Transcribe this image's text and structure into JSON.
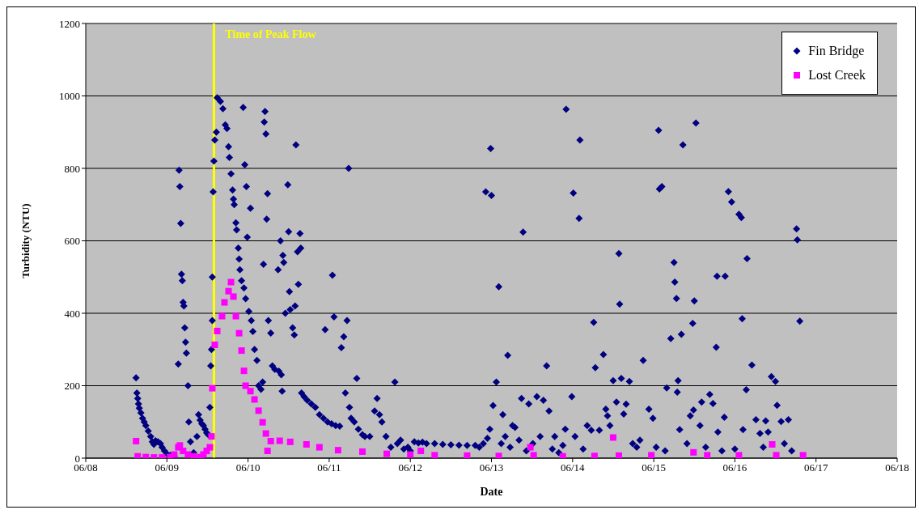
{
  "chart_data": {
    "type": "scatter",
    "xlabel": "Date",
    "ylabel": "Turbidity (NTU)",
    "xlim": [
      "--06-08",
      "--06-18"
    ],
    "xticks": [
      {
        "value": "--06-08",
        "label": "06/08"
      },
      {
        "value": "--06-09",
        "label": "06/09"
      },
      {
        "value": "--06-10",
        "label": "06/10"
      },
      {
        "value": "--06-11",
        "label": "06/11"
      },
      {
        "value": "--06-12",
        "label": "06/12"
      },
      {
        "value": "--06-13",
        "label": "06/13"
      },
      {
        "value": "--06-14",
        "label": "06/14"
      },
      {
        "value": "--06-15",
        "label": "06/15"
      },
      {
        "value": "--06-16",
        "label": "06/16"
      },
      {
        "value": "--06-17",
        "label": "06/17"
      },
      {
        "value": "--06-18",
        "label": "06/18"
      }
    ],
    "ylim": [
      0,
      1200
    ],
    "yticks": [
      0,
      200,
      400,
      600,
      800,
      1000,
      1200
    ],
    "grid": "y",
    "legend": "top right",
    "ref_lines": [
      {
        "axis": "x",
        "value": "--06-09T13:55",
        "label": "Time of Peak Flow",
        "color": "#ffff00"
      }
    ],
    "series": [
      {
        "name": "Fin Bridge",
        "color": "#000080",
        "marker": "diamond",
        "x": [
          "--06-08T14:53",
          "--06-08T15:07",
          "--06-08T15:22",
          "--06-08T15:36",
          "--06-08T15:50",
          "--06-08T16:19",
          "--06-08T16:48",
          "--06-08T17:17",
          "--06-08T17:46",
          "--06-08T18:29",
          "--06-08T19:12",
          "--06-08T19:41",
          "--06-08T20:10",
          "--06-08T20:38",
          "--06-08T21:22",
          "--06-08T22:05",
          "--06-08T22:34",
          "--06-08T23:17",
          "--06-09T00:00",
          "--06-09T00:58",
          "--06-09T02:10",
          "--06-09T03:22",
          "--06-09T03:36",
          "--06-09T03:50",
          "--06-09T04:05",
          "--06-09T04:19",
          "--06-09T04:34",
          "--06-09T04:48",
          "--06-09T05:02",
          "--06-09T05:17",
          "--06-09T05:31",
          "--06-09T05:46",
          "--06-09T06:14",
          "--06-09T06:29",
          "--06-09T06:58",
          "--06-09T07:55",
          "--06-09T08:53",
          "--06-09T09:22",
          "--06-09T09:50",
          "--06-09T10:19",
          "--06-09T10:48",
          "--06-09T11:17",
          "--06-09T11:46",
          "--06-09T12:14",
          "--06-09T12:43",
          "--06-09T12:58",
          "--06-09T13:12",
          "--06-09T13:26",
          "--06-09T13:26",
          "--06-09T13:41",
          "--06-09T13:55",
          "--06-09T14:10",
          "--06-09T14:38",
          "--06-09T14:53",
          "--06-09T15:50",
          "--06-09T16:34",
          "--06-09T17:17",
          "--06-09T17:46",
          "--06-09T18:14",
          "--06-09T18:29",
          "--06-09T18:58",
          "--06-09T19:26",
          "--06-09T19:41",
          "--06-09T19:55",
          "--06-09T20:24",
          "--06-09T20:38",
          "--06-09T21:07",
          "--06-09T21:22",
          "--06-09T21:36",
          "--06-09T22:05",
          "--06-09T22:34",
          "--06-09T22:48",
          "--06-09T23:02",
          "--06-09T23:17",
          "--06-09T23:31",
          "--06-09T23:46",
          "--06-10T00:14",
          "--06-10T00:43",
          "--06-10T00:58",
          "--06-10T01:26",
          "--06-10T01:55",
          "--06-10T02:38",
          "--06-10T03:07",
          "--06-10T03:50",
          "--06-10T04:19",
          "--06-10T04:34",
          "--06-10T04:48",
          "--06-10T05:02",
          "--06-10T05:17",
          "--06-10T05:31",
          "--06-10T05:46",
          "--06-10T06:00",
          "--06-10T06:43",
          "--06-10T07:12",
          "--06-10T07:55",
          "--06-10T08:53",
          "--06-10T09:07",
          "--06-10T09:36",
          "--06-10T09:50",
          "--06-10T10:05",
          "--06-10T10:19",
          "--06-10T10:34",
          "--06-10T11:02",
          "--06-10T11:46",
          "--06-10T12:00",
          "--06-10T12:14",
          "--06-10T12:29",
          "--06-10T13:12",
          "--06-10T13:41",
          "--06-10T13:55",
          "--06-10T14:10",
          "--06-10T14:38",
          "--06-10T14:53",
          "--06-10T15:22",
          "--06-10T15:36",
          "--06-10T15:50",
          "--06-10T16:34",
          "--06-10T17:31",
          "--06-10T18:43",
          "--06-10T19:55",
          "--06-10T21:07",
          "--06-10T22:19",
          "--06-10T22:48",
          "--06-10T23:31",
          "--06-11T00:43",
          "--06-11T00:58",
          "--06-11T01:26",
          "--06-11T01:55",
          "--06-11T03:07",
          "--06-11T03:36",
          "--06-11T04:19",
          "--06-11T04:48",
          "--06-11T05:17",
          "--06-11T05:46",
          "--06-11T06:00",
          "--06-11T06:29",
          "--06-11T07:26",
          "--06-11T08:10",
          "--06-11T08:38",
          "--06-11T09:50",
          "--06-11T10:34",
          "--06-11T12:00",
          "--06-11T13:26",
          "--06-11T14:10",
          "--06-11T14:53",
          "--06-11T15:36",
          "--06-11T16:48",
          "--06-11T18:14",
          "--06-11T19:26",
          "--06-11T20:10",
          "--06-11T21:07",
          "--06-11T22:05",
          "--06-11T23:17",
          "--06-12T00:00",
          "--06-12T01:12",
          "--06-12T02:24",
          "--06-12T03:36",
          "--06-12T04:48",
          "--06-12T07:12",
          "--06-12T09:36",
          "--06-12T12:00",
          "--06-12T14:24",
          "--06-12T16:48",
          "--06-12T19:12",
          "--06-12T20:24",
          "--06-12T21:36",
          "--06-12T22:48",
          "--06-12T23:31",
          "--06-12T22:19",
          "--06-12T23:46",
          "--06-13T00:00",
          "--06-13T00:29",
          "--06-13T01:26",
          "--06-13T02:10",
          "--06-13T02:53",
          "--06-13T03:22",
          "--06-13T04:05",
          "--06-13T04:48",
          "--06-13T05:31",
          "--06-13T06:14",
          "--06-13T06:58",
          "--06-13T08:10",
          "--06-13T08:53",
          "--06-13T09:22",
          "--06-13T10:19",
          "--06-13T11:02",
          "--06-13T12:14",
          "--06-13T13:26",
          "--06-13T14:24",
          "--06-13T15:22",
          "--06-13T16:19",
          "--06-13T17:02",
          "--06-13T18:00",
          "--06-13T18:43",
          "--06-13T19:55",
          "--06-13T21:07",
          "--06-13T21:50",
          "--06-13T22:05",
          "--06-13T23:46",
          "--06-14T00:14",
          "--06-14T00:43",
          "--06-14T01:55",
          "--06-14T02:10",
          "--06-14T03:07",
          "--06-14T04:19",
          "--06-14T05:31",
          "--06-14T06:14",
          "--06-14T06:43",
          "--06-14T07:55",
          "--06-14T09:07",
          "--06-14T09:50",
          "--06-14T10:19",
          "--06-14T11:02",
          "--06-14T12:00",
          "--06-14T12:58",
          "--06-14T13:41",
          "--06-14T13:55",
          "--06-14T14:24",
          "--06-14T15:07",
          "--06-14T15:50",
          "--06-14T16:48",
          "--06-14T17:46",
          "--06-14T18:58",
          "--06-14T19:55",
          "--06-14T20:53",
          "--06-14T22:34",
          "--06-14T23:46",
          "--06-15T00:43",
          "--06-15T01:26",
          "--06-15T01:41",
          "--06-15T02:24",
          "--06-15T03:22",
          "--06-15T03:50",
          "--06-15T05:02",
          "--06-15T06:00",
          "--06-15T06:14",
          "--06-15T06:43",
          "--06-15T06:58",
          "--06-15T07:12",
          "--06-15T07:41",
          "--06-15T08:10",
          "--06-15T08:38",
          "--06-15T09:50",
          "--06-15T10:48",
          "--06-15T11:31",
          "--06-15T11:46",
          "--06-15T12:00",
          "--06-15T12:29",
          "--06-15T13:41",
          "--06-15T14:10",
          "--06-15T15:22",
          "--06-15T16:34",
          "--06-15T17:31",
          "--06-15T18:29",
          "--06-15T18:43",
          "--06-15T18:58",
          "--06-15T20:10",
          "--06-15T20:53",
          "--06-15T21:07",
          "--06-15T22:05",
          "--06-15T23:02",
          "--06-16T00:00",
          "--06-16T01:12",
          "--06-16T01:55",
          "--06-16T02:10",
          "--06-16T02:24",
          "--06-16T03:22",
          "--06-16T03:36",
          "--06-16T05:02",
          "--06-16T06:14",
          "--06-16T07:26",
          "--06-16T08:24",
          "--06-16T09:07",
          "--06-16T09:50",
          "--06-16T10:48",
          "--06-16T12:00",
          "--06-16T12:29",
          "--06-16T13:41",
          "--06-16T14:38",
          "--06-16T15:50",
          "--06-16T16:48",
          "--06-16T18:14",
          "--06-16T18:29",
          "--06-16T19:12"
        ],
        "values": [
          222,
          180,
          165,
          150,
          138,
          125,
          110,
          100,
          90,
          75,
          60,
          45,
          38,
          48,
          45,
          40,
          30,
          20,
          12,
          8,
          5,
          260,
          795,
          750,
          648,
          508,
          490,
          430,
          420,
          360,
          320,
          290,
          200,
          100,
          45,
          15,
          60,
          120,
          105,
          95,
          90,
          80,
          70,
          65,
          140,
          255,
          300,
          380,
          500,
          735,
          820,
          878,
          900,
          995,
          985,
          965,
          920,
          910,
          860,
          830,
          785,
          740,
          715,
          700,
          650,
          630,
          580,
          550,
          520,
          490,
          968,
          470,
          810,
          440,
          750,
          610,
          405,
          690,
          380,
          350,
          300,
          270,
          200,
          190,
          210,
          535,
          928,
          957,
          895,
          660,
          730,
          380,
          345,
          255,
          245,
          520,
          240,
          600,
          230,
          185,
          560,
          540,
          400,
          755,
          625,
          460,
          410,
          360,
          340,
          420,
          865,
          570,
          480,
          620,
          580,
          180,
          170,
          160,
          150,
          140,
          120,
          110,
          355,
          100,
          95,
          505,
          390,
          90,
          88,
          305,
          335,
          180,
          380,
          800,
          140,
          110,
          100,
          220,
          80,
          65,
          60,
          60,
          130,
          165,
          120,
          100,
          60,
          30,
          210,
          40,
          50,
          25,
          30,
          20,
          45,
          42,
          44,
          40,
          40,
          38,
          37,
          36,
          35,
          35,
          30,
          40,
          55,
          80,
          735,
          855,
          725,
          145,
          210,
          473,
          40,
          120,
          60,
          284,
          30,
          90,
          85,
          50,
          165,
          624,
          20,
          150,
          40,
          170,
          60,
          160,
          255,
          130,
          25,
          60,
          15,
          35,
          80,
          963,
          170,
          732,
          60,
          662,
          878,
          25,
          90,
          77,
          375,
          250,
          77,
          286,
          135,
          117,
          90,
          214,
          155,
          565,
          425,
          220,
          122,
          149,
          212,
          40,
          30,
          50,
          270,
          135,
          110,
          30,
          905,
          743,
          750,
          20,
          194,
          330,
          540,
          486,
          441,
          182,
          214,
          79,
          342,
          865,
          40,
          117,
          372,
          133,
          434,
          925,
          90,
          155,
          30,
          176,
          151,
          306,
          502,
          72,
          20,
          113,
          502,
          736,
          707,
          25,
          673,
          664,
          385,
          79,
          189,
          551,
          257,
          106,
          68,
          30,
          103,
          72,
          225,
          212,
          146,
          101,
          40,
          106,
          20,
          633,
          603,
          378
        ]
      },
      {
        "name": "Lost Creek",
        "color": "#ff00ff",
        "marker": "square",
        "x": [
          "--06-08T14:53",
          "--06-08T15:22",
          "--06-08T17:46",
          "--06-08T20:10",
          "--06-08T22:34",
          "--06-09T00:58",
          "--06-09T02:10",
          "--06-09T03:22",
          "--06-09T03:50",
          "--06-09T04:48",
          "--06-09T06:14",
          "--06-09T07:55",
          "--06-09T09:50",
          "--06-09T10:48",
          "--06-09T11:46",
          "--06-09T12:43",
          "--06-09T13:12",
          "--06-09T13:26",
          "--06-09T14:10",
          "--06-09T14:53",
          "--06-09T16:19",
          "--06-09T17:02",
          "--06-09T18:14",
          "--06-09T18:58",
          "--06-09T19:41",
          "--06-09T20:24",
          "--06-09T21:22",
          "--06-09T22:05",
          "--06-09T22:48",
          "--06-09T23:17",
          "--06-10T00:43",
          "--06-10T01:55",
          "--06-10T03:07",
          "--06-10T04:19",
          "--06-10T05:17",
          "--06-10T05:46",
          "--06-10T06:43",
          "--06-10T09:22",
          "--06-10T12:29",
          "--06-10T17:17",
          "--06-10T21:07",
          "--06-11T02:38",
          "--06-11T09:50",
          "--06-11T17:02",
          "--06-12T00:00",
          "--06-12T03:07",
          "--06-12T07:12",
          "--06-12T16:48",
          "--06-13T02:10",
          "--06-13T11:31",
          "--06-13T12:29",
          "--06-13T21:07",
          "--06-14T06:29",
          "--06-14T12:00",
          "--06-14T13:41",
          "--06-14T23:17",
          "--06-15T11:46",
          "--06-15T15:50",
          "--06-16T01:12",
          "--06-16T11:02",
          "--06-16T12:14",
          "--06-16T20:10"
        ],
        "values": [
          47,
          5,
          3,
          2,
          2,
          3,
          10,
          30,
          35,
          20,
          10,
          5,
          3,
          10,
          20,
          30,
          60,
          193,
          313,
          351,
          392,
          430,
          461,
          486,
          446,
          392,
          345,
          297,
          241,
          200,
          185,
          162,
          131,
          99,
          68,
          20,
          47,
          48,
          45,
          38,
          30,
          22,
          18,
          12,
          10,
          20,
          8,
          7,
          6,
          30,
          8,
          5,
          6,
          57,
          7,
          8,
          16,
          8,
          8,
          38,
          8,
          8
        ]
      }
    ]
  }
}
